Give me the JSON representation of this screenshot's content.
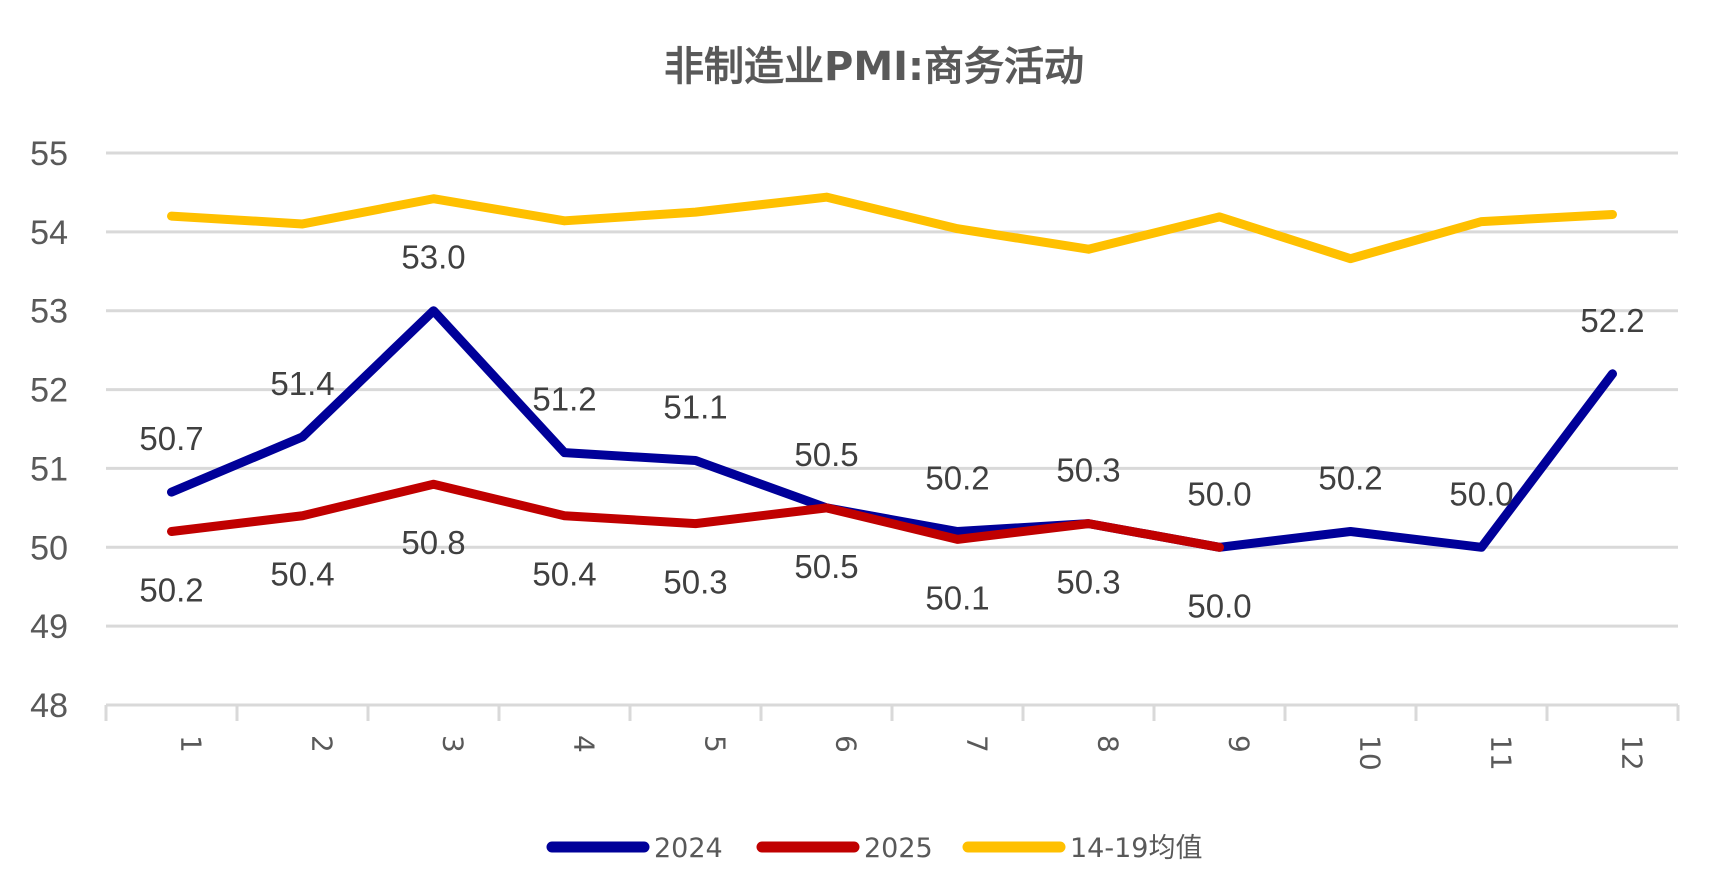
{
  "chart_data": {
    "type": "line",
    "title": "非制造业PMI:商务活动",
    "xlabel": "",
    "ylabel": "",
    "categories": [
      "1",
      "2",
      "3",
      "4",
      "5",
      "6",
      "7",
      "8",
      "9",
      "10",
      "11",
      "12"
    ],
    "ylim": [
      48,
      55
    ],
    "yticks": [
      48,
      49,
      50,
      51,
      52,
      53,
      54,
      55
    ],
    "grid": true,
    "legend_position": "bottom",
    "series": [
      {
        "name": "2024",
        "color": "#000099",
        "values": [
          50.7,
          51.4,
          53.0,
          51.2,
          51.1,
          50.5,
          50.2,
          50.3,
          50.0,
          50.2,
          50.0,
          52.2
        ],
        "labels": [
          "50.7",
          "51.4",
          "53.0",
          "51.2",
          "51.1",
          "50.5",
          "50.2",
          "50.3",
          "50.0",
          "50.2",
          "50.0",
          "52.2"
        ],
        "label_position": "above"
      },
      {
        "name": "2025",
        "color": "#C00000",
        "values": [
          50.2,
          50.4,
          50.8,
          50.4,
          50.3,
          50.5,
          50.1,
          50.3,
          50.0
        ],
        "labels": [
          "50.2",
          "50.4",
          "50.8",
          "50.4",
          "50.3",
          "50.5",
          "50.1",
          "50.3",
          "50.0"
        ],
        "label_position": "below"
      },
      {
        "name": "14-19均值",
        "color": "#FFC000",
        "values": [
          54.2,
          54.1,
          54.42,
          54.14,
          54.25,
          54.44,
          54.04,
          53.78,
          54.19,
          53.66,
          54.13,
          54.22
        ],
        "labels": [],
        "label_position": "none"
      }
    ]
  }
}
